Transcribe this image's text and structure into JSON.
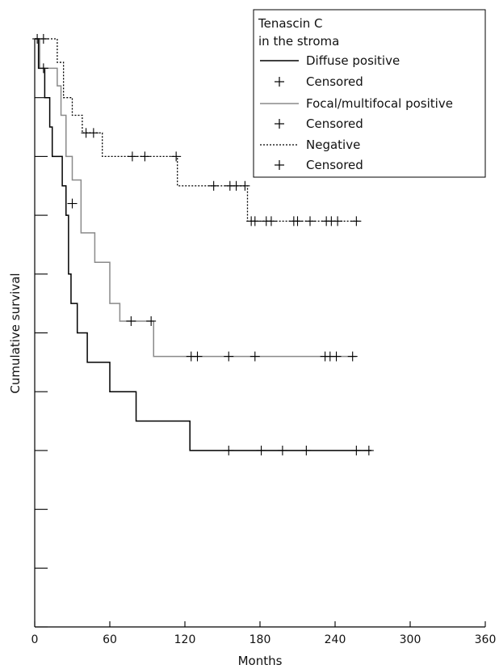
{
  "chart_data": {
    "type": "line",
    "subtype": "kaplan-meier step",
    "xlabel": "Months",
    "ylabel": "Cumulative survival",
    "xlim": [
      0,
      360
    ],
    "ylim": [
      0,
      1
    ],
    "x_ticks": [
      0,
      60,
      120,
      180,
      240,
      300,
      360
    ],
    "y_ticks": [
      0,
      0.1,
      0.2,
      0.3,
      0.4,
      0.5,
      0.6,
      0.7,
      0.8,
      0.9,
      1.0
    ],
    "grid": false,
    "legend": {
      "placement": "top-right",
      "title_lines": [
        "Tenascin C",
        "in the stroma"
      ],
      "entries": [
        {
          "label": "Diffuse positive",
          "kind": "line",
          "style": "solid",
          "color": "#000000"
        },
        {
          "label": "Censored",
          "kind": "marker",
          "color": "#000000"
        },
        {
          "label": "Focal/multifocal positive",
          "kind": "line",
          "style": "solid",
          "color": "#8a8a8a"
        },
        {
          "label": "Censored",
          "kind": "marker",
          "color": "#000000"
        },
        {
          "label": "Negative",
          "kind": "line",
          "style": "dotted",
          "color": "#000000"
        },
        {
          "label": "Censored",
          "kind": "marker",
          "color": "#000000"
        }
      ]
    },
    "series": [
      {
        "name": "Diffuse positive",
        "color": "#000000",
        "dash": "",
        "steps": [
          [
            0,
            1.0
          ],
          [
            3,
            0.95
          ],
          [
            8,
            0.9
          ],
          [
            12,
            0.85
          ],
          [
            14,
            0.8
          ],
          [
            22,
            0.75
          ],
          [
            25,
            0.7
          ],
          [
            27,
            0.6
          ],
          [
            29,
            0.55
          ],
          [
            34,
            0.5
          ],
          [
            42,
            0.45
          ],
          [
            60,
            0.4
          ],
          [
            81,
            0.35
          ],
          [
            124,
            0.3
          ],
          [
            269,
            0.3
          ]
        ],
        "censored": [
          [
            7,
            0.95
          ],
          [
            155,
            0.3
          ],
          [
            181,
            0.3
          ],
          [
            198,
            0.3
          ],
          [
            217,
            0.3
          ],
          [
            257,
            0.3
          ],
          [
            267,
            0.3
          ]
        ]
      },
      {
        "name": "Focal/multifocal positive",
        "color": "#8a8a8a",
        "dash": "",
        "steps": [
          [
            0,
            1.0
          ],
          [
            4,
            0.95
          ],
          [
            18,
            0.92
          ],
          [
            21,
            0.87
          ],
          [
            25,
            0.8
          ],
          [
            30,
            0.76
          ],
          [
            37,
            0.67
          ],
          [
            48,
            0.62
          ],
          [
            60,
            0.55
          ],
          [
            68,
            0.52
          ],
          [
            95,
            0.46
          ],
          [
            257,
            0.46
          ]
        ],
        "censored": [
          [
            30,
            0.72
          ],
          [
            77,
            0.52
          ],
          [
            93,
            0.52
          ],
          [
            125,
            0.46
          ],
          [
            130,
            0.46
          ],
          [
            155,
            0.46
          ],
          [
            176,
            0.46
          ],
          [
            232,
            0.46
          ],
          [
            236,
            0.46
          ],
          [
            241,
            0.46
          ],
          [
            254,
            0.46
          ]
        ]
      },
      {
        "name": "Negative",
        "color": "#000000",
        "dash": "2,2",
        "steps": [
          [
            0,
            1.0
          ],
          [
            18,
            0.96
          ],
          [
            23,
            0.9
          ],
          [
            30,
            0.87
          ],
          [
            38,
            0.84
          ],
          [
            54,
            0.8
          ],
          [
            114,
            0.75
          ],
          [
            170,
            0.69
          ],
          [
            260,
            0.69
          ]
        ],
        "censored": [
          [
            2,
            1.0
          ],
          [
            7,
            1.0
          ],
          [
            41,
            0.84
          ],
          [
            47,
            0.84
          ],
          [
            78,
            0.8
          ],
          [
            88,
            0.8
          ],
          [
            113,
            0.8
          ],
          [
            143,
            0.75
          ],
          [
            156,
            0.75
          ],
          [
            161,
            0.75
          ],
          [
            168,
            0.75
          ],
          [
            173,
            0.69
          ],
          [
            176,
            0.69
          ],
          [
            185,
            0.69
          ],
          [
            189,
            0.69
          ],
          [
            207,
            0.69
          ],
          [
            210,
            0.69
          ],
          [
            220,
            0.69
          ],
          [
            233,
            0.69
          ],
          [
            237,
            0.69
          ],
          [
            242,
            0.69
          ],
          [
            257,
            0.69
          ]
        ]
      }
    ]
  }
}
